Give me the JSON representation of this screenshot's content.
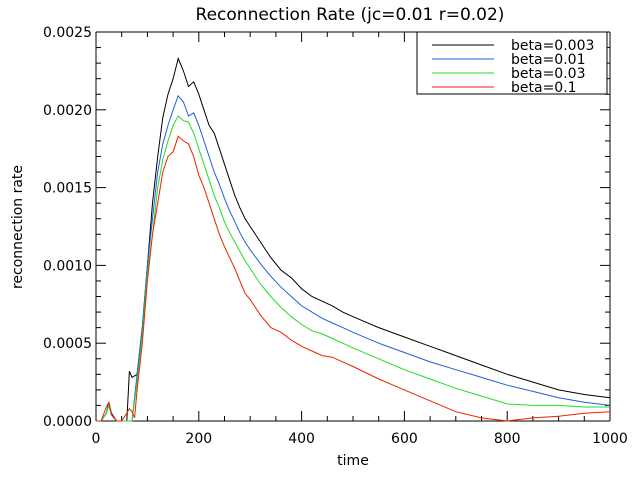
{
  "chart_data": {
    "type": "line",
    "title": "Reconnection Rate (jc=0.01 r=0.02)",
    "xlabel": "time",
    "ylabel": "reconnection rate",
    "xlim": [
      0,
      1000
    ],
    "ylim": [
      0.0,
      0.0025
    ],
    "x_ticks": [
      0,
      200,
      400,
      600,
      800,
      1000
    ],
    "x_tick_labels": [
      "0",
      "200",
      "400",
      "600",
      "800",
      "1000"
    ],
    "y_ticks": [
      0.0,
      0.0005,
      0.001,
      0.0015,
      0.002,
      0.0025
    ],
    "y_tick_labels": [
      "0.0000",
      "0.0005",
      "0.0010",
      "0.0015",
      "0.0020",
      "0.0025"
    ],
    "grid": false,
    "legend_position": "top-right",
    "series": [
      {
        "name": "beta=0.003",
        "color": "#000000",
        "x": [
          0,
          10,
          20,
          25,
          30,
          40,
          50,
          60,
          65,
          70,
          80,
          90,
          100,
          110,
          120,
          130,
          140,
          150,
          160,
          170,
          180,
          190,
          200,
          210,
          220,
          230,
          240,
          250,
          260,
          270,
          280,
          290,
          300,
          320,
          340,
          360,
          380,
          400,
          420,
          440,
          460,
          480,
          500,
          550,
          600,
          650,
          700,
          750,
          800,
          850,
          900,
          950,
          1000
        ],
        "y": [
          0.0,
          0.0,
          5e-05,
          0.00012,
          5e-05,
          0.0,
          0.0,
          0.0,
          0.00032,
          0.00028,
          0.0003,
          0.0006,
          0.001,
          0.0014,
          0.0017,
          0.00195,
          0.0021,
          0.0022,
          0.00233,
          0.00225,
          0.00215,
          0.00218,
          0.0021,
          0.002,
          0.0019,
          0.00185,
          0.00175,
          0.00165,
          0.00155,
          0.00145,
          0.00137,
          0.0013,
          0.00125,
          0.00115,
          0.00105,
          0.00097,
          0.00092,
          0.00085,
          0.0008,
          0.00077,
          0.00074,
          0.0007,
          0.00067,
          0.0006,
          0.00054,
          0.00048,
          0.00042,
          0.00036,
          0.0003,
          0.00025,
          0.0002,
          0.00017,
          0.00015
        ]
      },
      {
        "name": "beta=0.01",
        "color": "#1f5fe0",
        "x": [
          0,
          10,
          20,
          25,
          30,
          40,
          50,
          60,
          70,
          80,
          90,
          100,
          110,
          120,
          130,
          140,
          150,
          160,
          170,
          180,
          190,
          200,
          210,
          220,
          230,
          240,
          250,
          260,
          270,
          280,
          290,
          300,
          320,
          340,
          360,
          380,
          400,
          420,
          440,
          460,
          480,
          500,
          550,
          600,
          650,
          700,
          750,
          800,
          850,
          900,
          950,
          1000
        ],
        "y": [
          0.0,
          0.0,
          5e-05,
          0.00011,
          4e-05,
          0.0,
          0.0,
          0.0,
          0.0,
          0.0003,
          0.0006,
          0.001,
          0.0013,
          0.0016,
          0.00178,
          0.0019,
          0.002,
          0.00209,
          0.00205,
          0.00196,
          0.00198,
          0.0019,
          0.0018,
          0.0017,
          0.0016,
          0.00152,
          0.00143,
          0.00135,
          0.00128,
          0.00121,
          0.00115,
          0.0011,
          0.00101,
          0.00093,
          0.00086,
          0.0008,
          0.00074,
          0.0007,
          0.00066,
          0.00063,
          0.0006,
          0.00057,
          0.0005,
          0.00044,
          0.00038,
          0.00033,
          0.00028,
          0.00023,
          0.00019,
          0.00015,
          0.00012,
          0.0001
        ]
      },
      {
        "name": "beta=0.03",
        "color": "#22dd22",
        "x": [
          0,
          10,
          20,
          25,
          30,
          40,
          50,
          60,
          70,
          80,
          90,
          100,
          110,
          120,
          130,
          140,
          150,
          160,
          170,
          180,
          190,
          200,
          210,
          220,
          230,
          240,
          250,
          260,
          270,
          280,
          290,
          300,
          320,
          340,
          360,
          380,
          400,
          420,
          440,
          460,
          480,
          500,
          550,
          600,
          650,
          700,
          750,
          800,
          850,
          900,
          950,
          1000
        ],
        "y": [
          0.0,
          0.0,
          5e-05,
          0.0001,
          4e-05,
          0.0,
          0.0,
          0.0,
          0.0,
          0.00025,
          0.00055,
          0.00095,
          0.0012,
          0.0015,
          0.00168,
          0.0018,
          0.0019,
          0.00196,
          0.00193,
          0.00192,
          0.00185,
          0.00175,
          0.00165,
          0.00155,
          0.00145,
          0.00137,
          0.00128,
          0.00121,
          0.00115,
          0.00109,
          0.00103,
          0.00098,
          0.00088,
          0.0008,
          0.00073,
          0.00067,
          0.00062,
          0.00058,
          0.00056,
          0.00053,
          0.0005,
          0.00047,
          0.0004,
          0.00033,
          0.00027,
          0.00021,
          0.00016,
          0.00011,
          0.0001,
          0.0001,
          9e-05,
          9e-05
        ]
      },
      {
        "name": "beta=0.1",
        "color": "#ee2200",
        "x": [
          0,
          10,
          20,
          25,
          30,
          40,
          50,
          60,
          65,
          70,
          75,
          80,
          90,
          100,
          110,
          120,
          130,
          140,
          150,
          160,
          170,
          180,
          190,
          200,
          210,
          220,
          230,
          240,
          250,
          260,
          270,
          280,
          290,
          300,
          320,
          340,
          360,
          380,
          400,
          420,
          440,
          460,
          480,
          500,
          550,
          600,
          650,
          700,
          750,
          800,
          850,
          900,
          950,
          1000
        ],
        "y": [
          0.0,
          0.0,
          9e-05,
          0.00012,
          4e-05,
          0.0,
          0.0,
          5e-05,
          8e-05,
          6e-05,
          2e-05,
          0.0002,
          0.0005,
          0.0009,
          0.0012,
          0.0014,
          0.0016,
          0.0017,
          0.00173,
          0.00183,
          0.0018,
          0.00178,
          0.0017,
          0.00158,
          0.0015,
          0.0014,
          0.0013,
          0.0012,
          0.00112,
          0.00105,
          0.00098,
          0.0009,
          0.00082,
          0.00078,
          0.00068,
          0.0006,
          0.00057,
          0.00052,
          0.00048,
          0.00045,
          0.00042,
          0.00041,
          0.00038,
          0.00035,
          0.00027,
          0.0002,
          0.00013,
          6e-05,
          2e-05,
          0.0,
          2e-05,
          3e-05,
          5e-05,
          6e-05
        ]
      }
    ]
  }
}
